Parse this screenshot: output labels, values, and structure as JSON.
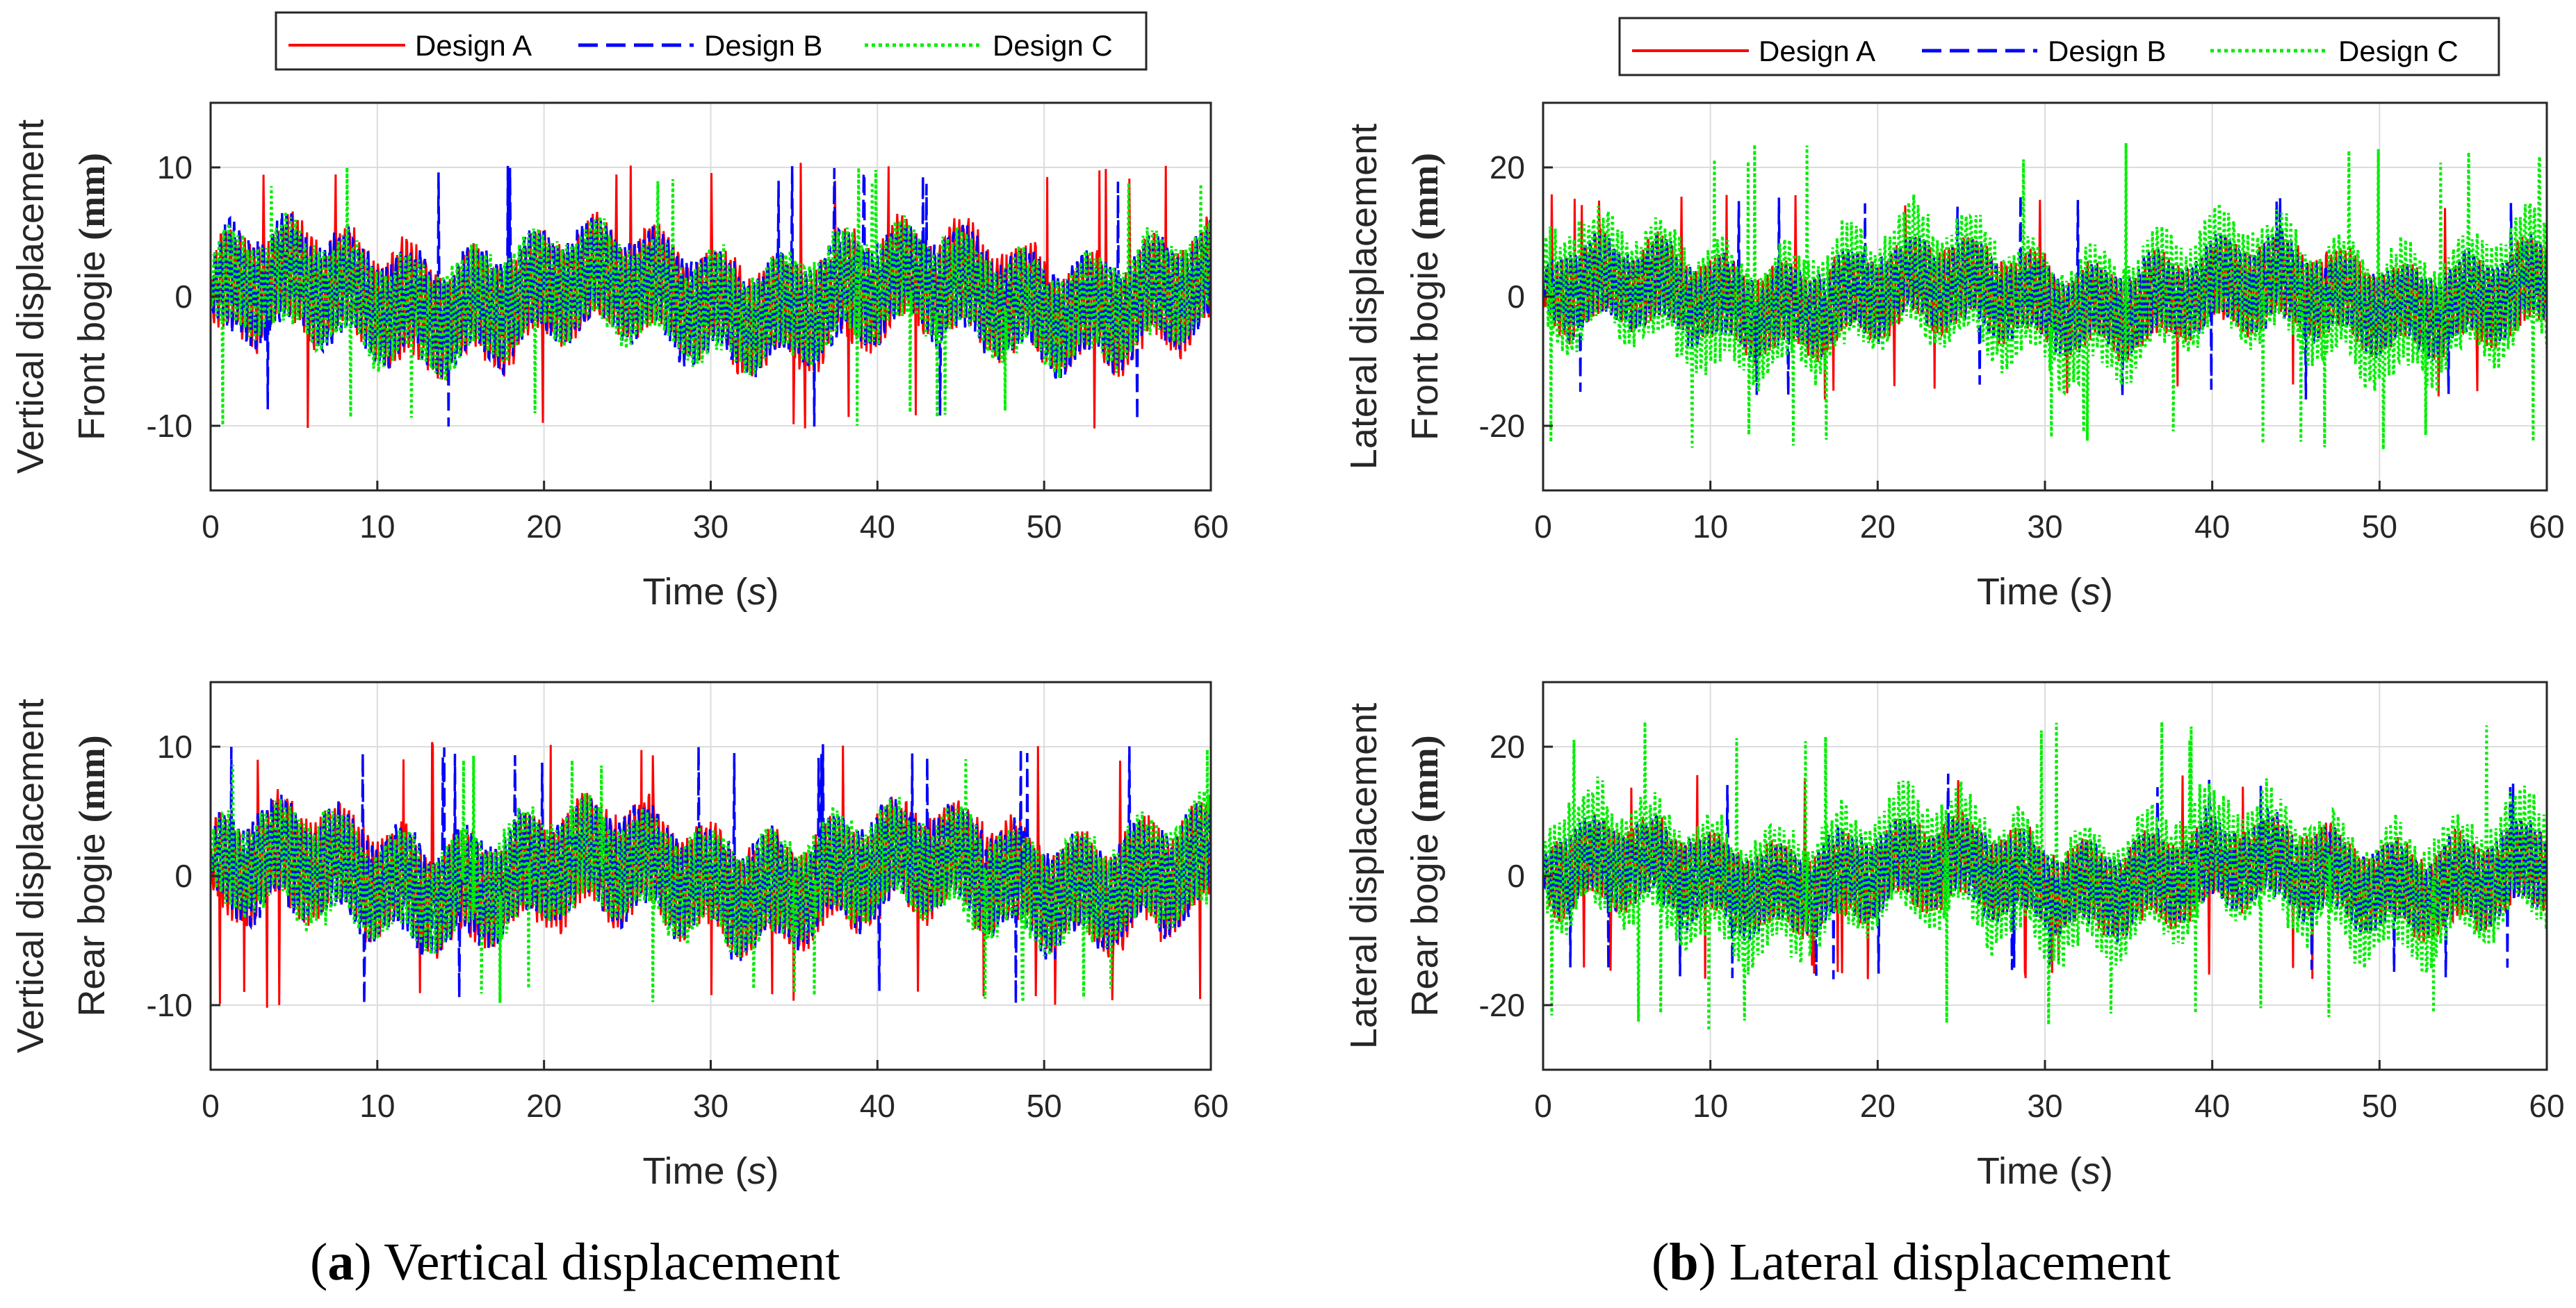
{
  "legend": [
    "Design A",
    "Design B",
    "Design C"
  ],
  "colors": {
    "Design A": "#ff0000",
    "Design B": "#0000ff",
    "Design C": "#00ee00",
    "grid": "#dcdcdc",
    "axis": "#262626"
  },
  "captions": {
    "a": {
      "letter": "a",
      "text": ") Vertical displacement"
    },
    "b": {
      "letter": "b",
      "text": ") Lateral displacement"
    }
  },
  "chart_data": [
    {
      "type": "line",
      "panel": "a-top",
      "ylabel1": "Vertical displacement",
      "ylabel2_a": "Front bogie ",
      "ylabel2_b": "(mm)",
      "xlabel_a": "Time (",
      "xlabel_s": "s",
      "xlabel_b": ")",
      "xlim": [
        0,
        60
      ],
      "ylim": [
        -15,
        15
      ],
      "xticks": [
        0,
        10,
        20,
        30,
        40,
        50,
        60
      ],
      "yticks": [
        -10,
        0,
        10
      ],
      "ytick_labels": [
        "-10",
        "0",
        "10"
      ],
      "series_names": [
        "Design A",
        "Design B",
        "Design C"
      ],
      "amplitude": [
        10.5,
        10.2,
        10.0
      ],
      "note": "dense random vibration signal over 0-60 s"
    },
    {
      "type": "line",
      "panel": "a-bottom",
      "ylabel1": "Vertical displacement",
      "ylabel2_a": "Rear bogie ",
      "ylabel2_b": "(mm)",
      "xlabel_a": "Time (",
      "xlabel_s": "s",
      "xlabel_b": ")",
      "xlim": [
        0,
        60
      ],
      "ylim": [
        -15,
        15
      ],
      "xticks": [
        0,
        10,
        20,
        30,
        40,
        50,
        60
      ],
      "yticks": [
        -10,
        0,
        10
      ],
      "ytick_labels": [
        "-10",
        "0",
        "10"
      ],
      "series_names": [
        "Design A",
        "Design B",
        "Design C"
      ],
      "amplitude": [
        10.5,
        10.2,
        10.0
      ]
    },
    {
      "type": "line",
      "panel": "b-top",
      "ylabel1": "Lateral displacement",
      "ylabel2_a": "Front bogie ",
      "ylabel2_b": "(mm)",
      "xlabel_a": "Time (",
      "xlabel_s": "s",
      "xlabel_b": ")",
      "xlim": [
        0,
        60
      ],
      "ylim": [
        -30,
        30
      ],
      "xticks": [
        0,
        10,
        20,
        30,
        40,
        50,
        60
      ],
      "yticks": [
        -20,
        0,
        20
      ],
      "ytick_labels": [
        "-20",
        "0",
        "20"
      ],
      "series_names": [
        "Design A",
        "Design B",
        "Design C"
      ],
      "amplitude": [
        16.0,
        16.0,
        24.0
      ]
    },
    {
      "type": "line",
      "panel": "b-bottom",
      "ylabel1": "Lateral displacement",
      "ylabel2_a": "Rear bogie ",
      "ylabel2_b": "(mm)",
      "xlabel_a": "Time (",
      "xlabel_s": "s",
      "xlabel_b": ")",
      "xlim": [
        0,
        60
      ],
      "ylim": [
        -30,
        30
      ],
      "xticks": [
        0,
        10,
        20,
        30,
        40,
        50,
        60
      ],
      "yticks": [
        -20,
        0,
        20
      ],
      "ytick_labels": [
        "-20",
        "0",
        "20"
      ],
      "series_names": [
        "Design A",
        "Design B",
        "Design C"
      ],
      "amplitude": [
        16.0,
        16.0,
        24.0
      ]
    }
  ]
}
